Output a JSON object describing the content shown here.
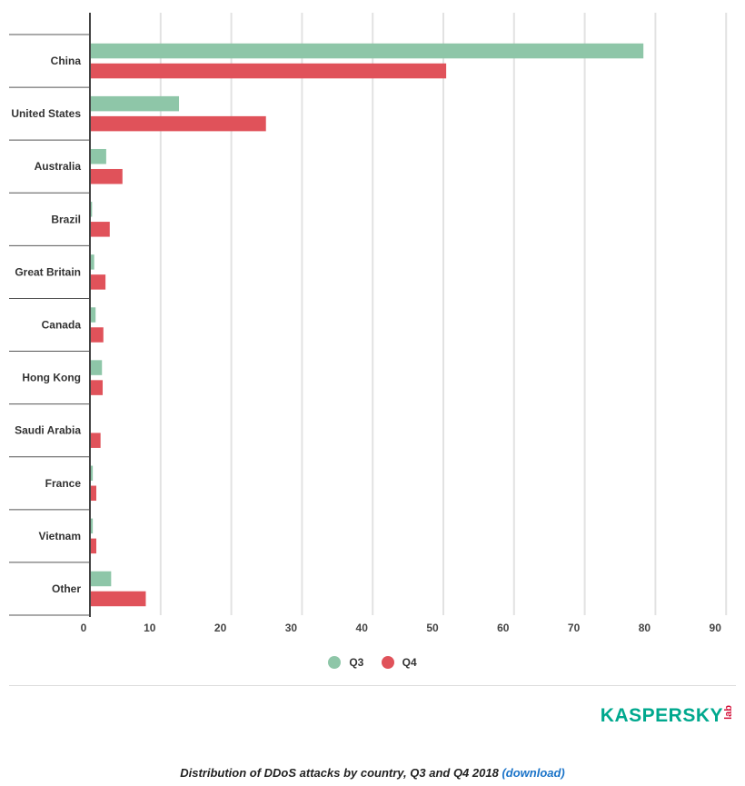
{
  "chart_data": {
    "type": "bar",
    "orientation": "horizontal",
    "categories": [
      "China",
      "United States",
      "Australia",
      "Brazil",
      "Great Britain",
      "Canada",
      "Hong Kong",
      "Saudi Arabia",
      "France",
      "Vietnam",
      "Other"
    ],
    "series": [
      {
        "name": "Q3",
        "color": "#8ec6a8",
        "values": [
          78.3,
          12.6,
          2.3,
          0.3,
          0.6,
          0.8,
          1.7,
          0.0,
          0.4,
          0.4,
          3.0
        ]
      },
      {
        "name": "Q4",
        "color": "#e0525a",
        "values": [
          50.4,
          24.9,
          4.6,
          2.8,
          2.2,
          1.9,
          1.8,
          1.5,
          0.9,
          0.9,
          7.9
        ]
      }
    ],
    "xticks": [
      0,
      10,
      20,
      30,
      40,
      50,
      60,
      70,
      80,
      90
    ],
    "xlim": [
      0,
      90
    ],
    "grid": true,
    "legend_placement": "bottom"
  },
  "legend": {
    "q3": "Q3",
    "q4": "Q4"
  },
  "logo": {
    "text": "KASPERSKY",
    "suffix": "lab"
  },
  "caption": {
    "text": "Distribution of DDoS attacks by country, Q3 and Q4 2018",
    "link": "(download)"
  }
}
